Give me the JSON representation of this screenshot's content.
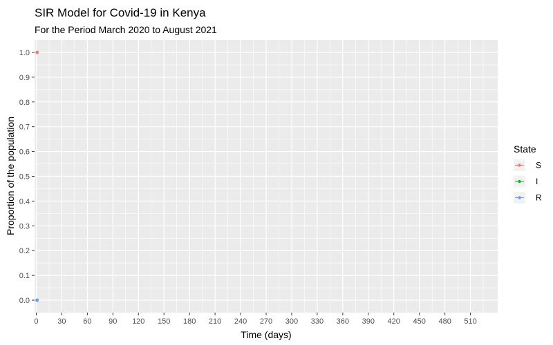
{
  "chart_data": {
    "type": "scatter",
    "title": "SIR Model for Covid-19 in Kenya",
    "subtitle": "For the Period March 2020 to August 2021",
    "xlabel": "Time (days)",
    "ylabel": "Proportion of the population",
    "xlim": [
      -2,
      542
    ],
    "ylim": [
      -0.05,
      1.05
    ],
    "x_ticks": [
      0,
      30,
      60,
      90,
      120,
      150,
      180,
      210,
      240,
      270,
      300,
      330,
      360,
      390,
      420,
      450,
      480,
      510
    ],
    "y_ticks": [
      0.0,
      0.1,
      0.2,
      0.3,
      0.4,
      0.5,
      0.6,
      0.7,
      0.8,
      0.9,
      1.0
    ],
    "y_tick_labels": [
      "0.0",
      "0.1",
      "0.2",
      "0.3",
      "0.4",
      "0.5",
      "0.6",
      "0.7",
      "0.8",
      "0.9",
      "1.0"
    ],
    "grid": true,
    "legend": {
      "title": "State",
      "placement": "right"
    },
    "series": [
      {
        "name": "S",
        "color": "#F8766D",
        "x": [
          1
        ],
        "y": [
          1.0
        ]
      },
      {
        "name": "I",
        "color": "#00BA38",
        "x": [
          1
        ],
        "y": [
          0.0
        ]
      },
      {
        "name": "R",
        "color": "#619CFF",
        "x": [
          1
        ],
        "y": [
          0.0
        ]
      }
    ]
  }
}
